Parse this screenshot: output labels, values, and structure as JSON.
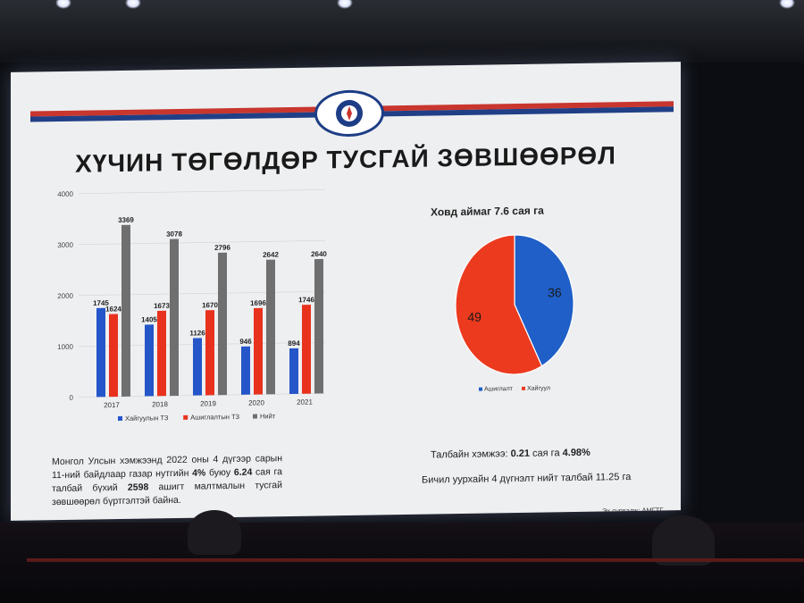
{
  "slide": {
    "title": "ХҮЧИН ТӨГӨЛДӨР ТУСГАЙ ЗӨВШӨӨРӨЛ",
    "pie_title": "Ховд аймаг 7.6 сая га",
    "footer_left": {
      "p1": "Монгол Улсын хэмжээнд 2022 оны 4 дүгээр сарын 11-ний байдлаар газар нутгийн ",
      "b1": "4%",
      "p2": " буюу ",
      "b2": "6.24",
      "p3": " сая га талбай бүхий ",
      "b3": "2598",
      "p4": " ашигт малтмалын тусгай зөвшөөрөл бүртгэлтэй байна."
    },
    "footer_right_1": {
      "p1": "Талбайн хэмжээ: ",
      "b1": "0.21",
      "p2": " сая га ",
      "b2": "4.98%"
    },
    "footer_right_2": "Бичил уурхайн 4 дүгнэлт нийт талбай 11.25 га",
    "source": "Эх сурвалж: АМГТГ, ГУУХХ"
  },
  "chart_data": [
    {
      "type": "bar",
      "categories": [
        "2017",
        "2018",
        "2019",
        "2020",
        "2021"
      ],
      "series": [
        {
          "name": "Хайгуулын ТЗ",
          "values": [
            1745,
            1405,
            1126,
            946,
            894
          ],
          "color": "#2456c9"
        },
        {
          "name": "Ашиглалтын ТЗ",
          "values": [
            1624,
            1673,
            1670,
            1696,
            1746
          ],
          "color": "#e8321e"
        },
        {
          "name": "Нийт",
          "values": [
            3369,
            3078,
            2796,
            2642,
            2640
          ],
          "color": "#6f6f6f"
        }
      ],
      "yticks": [
        "0",
        "1000",
        "2000",
        "3000",
        "4000"
      ],
      "ylim": [
        0,
        4000
      ],
      "legend_position": "bottom"
    },
    {
      "type": "pie",
      "title": "Ховд аймаг 7.6 сая га",
      "labels": [
        "Ашиглалт",
        "Хайгуул"
      ],
      "values": [
        36,
        49
      ],
      "colors": [
        "#1f5fc7",
        "#ec3a1f"
      ],
      "legend_position": "bottom"
    }
  ]
}
